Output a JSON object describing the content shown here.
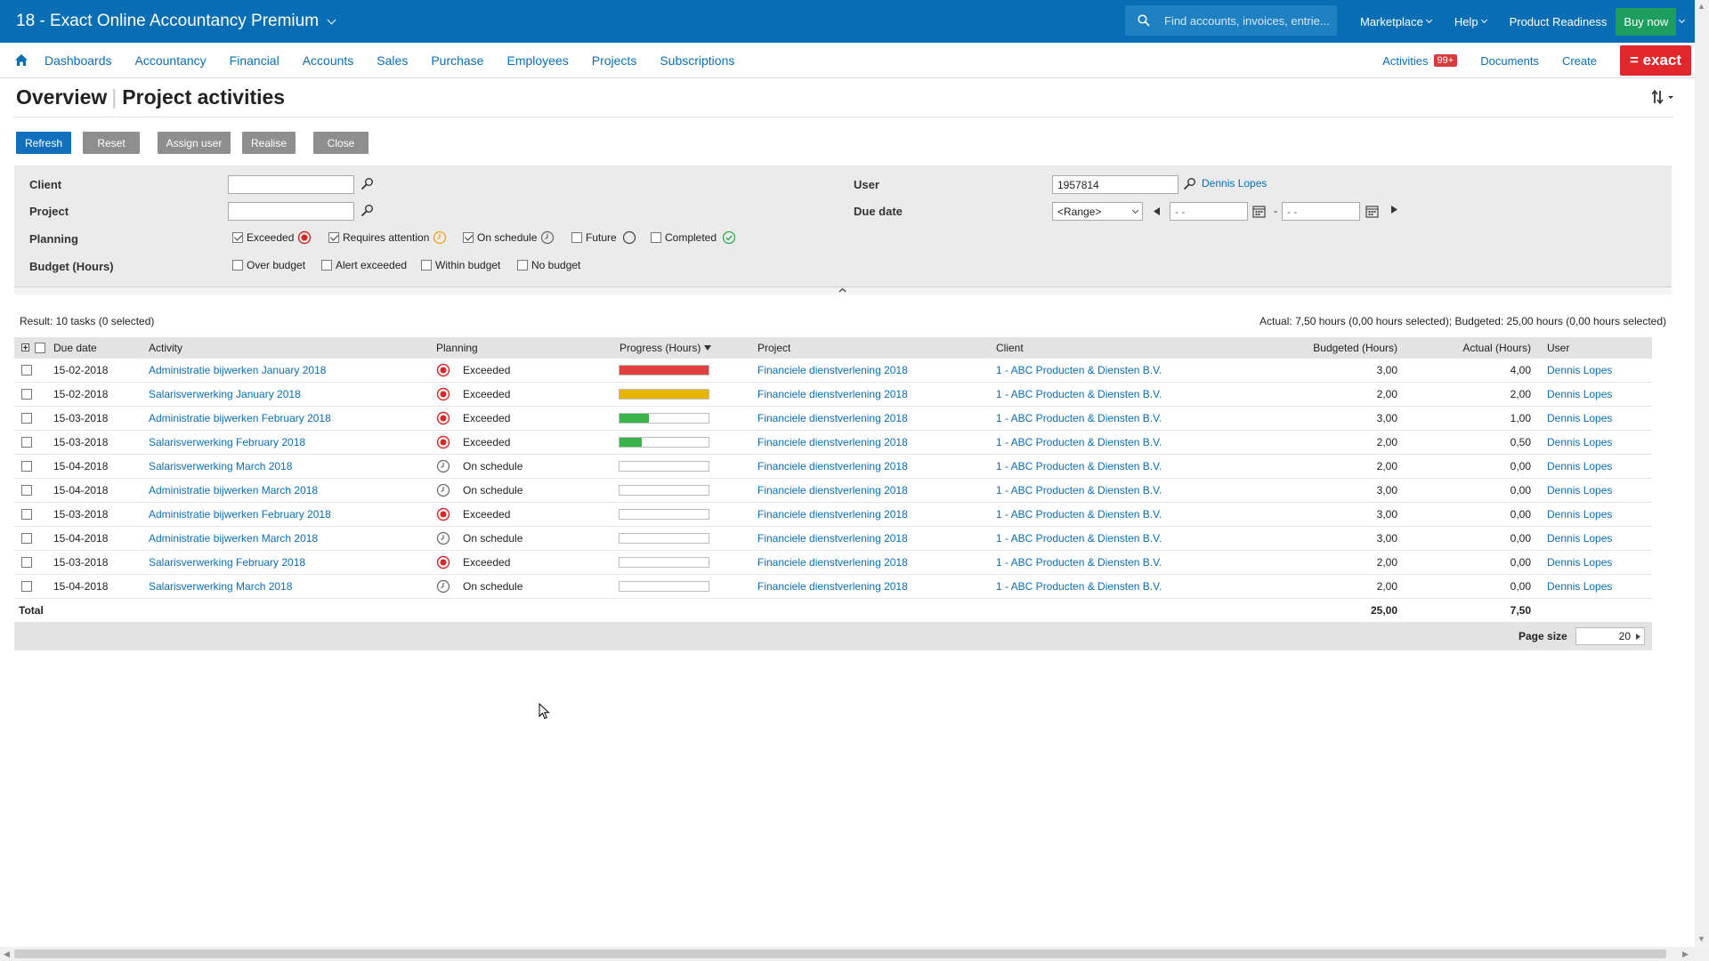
{
  "topbar": {
    "title": "18 - Exact Online Accountancy Premium",
    "search_placeholder": "Find accounts, invoices, entrie...",
    "links": [
      {
        "label": "Marketplace",
        "dropdown": true
      },
      {
        "label": "Help",
        "dropdown": true
      },
      {
        "label": "Product Readiness",
        "dropdown": false
      }
    ],
    "buy_label": "Buy now",
    "bg_color": "#0a6eb4"
  },
  "nav": {
    "items": [
      "Dashboards",
      "Accountancy",
      "Financial",
      "Accounts",
      "Sales",
      "Purchase",
      "Employees",
      "Projects",
      "Subscriptions"
    ],
    "activities_label": "Activities",
    "activities_badge": "99+",
    "documents_label": "Documents",
    "create_label": "Create",
    "logo_text": "= exact"
  },
  "page": {
    "title_left": "Overview",
    "title_right": "Project activities"
  },
  "buttons": {
    "refresh": "Refresh",
    "reset": "Reset",
    "assign_user": "Assign user",
    "realise": "Realise",
    "close": "Close"
  },
  "filters": {
    "client_label": "Client",
    "client_value": "",
    "project_label": "Project",
    "project_value": "",
    "planning_label": "Planning",
    "planning_options": [
      {
        "label": "Exceeded",
        "checked": true
      },
      {
        "label": "Requires attention",
        "checked": true
      },
      {
        "label": "On schedule",
        "checked": true
      },
      {
        "label": "Future",
        "checked": false
      },
      {
        "label": "Completed",
        "checked": false
      }
    ],
    "budget_label": "Budget (Hours)",
    "budget_options": [
      {
        "label": "Over budget",
        "checked": false
      },
      {
        "label": "Alert exceeded",
        "checked": false
      },
      {
        "label": "Within budget",
        "checked": false
      },
      {
        "label": "No budget",
        "checked": false
      }
    ],
    "user_label": "User",
    "user_value": "1957814",
    "user_name": "Dennis Lopes",
    "due_date_label": "Due date",
    "due_date_select": "<Range>",
    "date_from": "- -",
    "date_to": "- -"
  },
  "results": {
    "summary_left": "Result: 10 tasks (0 selected)",
    "summary_right": "Actual: 7,50 hours (0,00 hours selected); Budgeted: 25,00 hours (0,00 hours selected)"
  },
  "table": {
    "headers": {
      "due_date": "Due date",
      "activity": "Activity",
      "planning": "Planning",
      "progress": "Progress (Hours)",
      "project": "Project",
      "client": "Client",
      "budgeted": "Budgeted (Hours)",
      "actual": "Actual (Hours)",
      "user": "User"
    },
    "rows": [
      {
        "due_date": "15-02-2018",
        "activity": "Administratie bijwerken January 2018",
        "planning": "Exceeded",
        "progress": 1.0,
        "progress_color": "#e04040",
        "project": "Financiele dienstverlening 2018",
        "client": "1 - ABC Producten & Diensten B.V.",
        "budgeted": "3,00",
        "actual": "4,00",
        "user": "Dennis Lopes"
      },
      {
        "due_date": "15-02-2018",
        "activity": "Salarisverwerking January 2018",
        "planning": "Exceeded",
        "progress": 1.0,
        "progress_color": "#e8b400",
        "project": "Financiele dienstverlening 2018",
        "client": "1 - ABC Producten & Diensten B.V.",
        "budgeted": "2,00",
        "actual": "2,00",
        "user": "Dennis Lopes"
      },
      {
        "due_date": "15-03-2018",
        "activity": "Administratie bijwerken February 2018",
        "planning": "Exceeded",
        "progress": 0.33,
        "progress_color": "#3cb44b",
        "project": "Financiele dienstverlening 2018",
        "client": "1 - ABC Producten & Diensten B.V.",
        "budgeted": "3,00",
        "actual": "1,00",
        "user": "Dennis Lopes"
      },
      {
        "due_date": "15-03-2018",
        "activity": "Salarisverwerking February 2018",
        "planning": "Exceeded",
        "progress": 0.25,
        "progress_color": "#3cb44b",
        "project": "Financiele dienstverlening 2018",
        "client": "1 - ABC Producten & Diensten B.V.",
        "budgeted": "2,00",
        "actual": "0,50",
        "user": "Dennis Lopes"
      },
      {
        "due_date": "15-04-2018",
        "activity": "Salarisverwerking March 2018",
        "planning": "On schedule",
        "progress": 0,
        "progress_color": "#3cb44b",
        "project": "Financiele dienstverlening 2018",
        "client": "1 - ABC Producten & Diensten B.V.",
        "budgeted": "2,00",
        "actual": "0,00",
        "user": "Dennis Lopes"
      },
      {
        "due_date": "15-04-2018",
        "activity": "Administratie bijwerken March 2018",
        "planning": "On schedule",
        "progress": 0,
        "progress_color": "#3cb44b",
        "project": "Financiele dienstverlening 2018",
        "client": "1 - ABC Producten & Diensten B.V.",
        "budgeted": "3,00",
        "actual": "0,00",
        "user": "Dennis Lopes"
      },
      {
        "due_date": "15-03-2018",
        "activity": "Administratie bijwerken February 2018",
        "planning": "Exceeded",
        "progress": 0,
        "progress_color": "#3cb44b",
        "project": "Financiele dienstverlening 2018",
        "client": "1 - ABC Producten & Diensten B.V.",
        "budgeted": "3,00",
        "actual": "0,00",
        "user": "Dennis Lopes"
      },
      {
        "due_date": "15-04-2018",
        "activity": "Administratie bijwerken March 2018",
        "planning": "On schedule",
        "progress": 0,
        "progress_color": "#3cb44b",
        "project": "Financiele dienstverlening 2018",
        "client": "1 - ABC Producten & Diensten B.V.",
        "budgeted": "3,00",
        "actual": "0,00",
        "user": "Dennis Lopes"
      },
      {
        "due_date": "15-03-2018",
        "activity": "Salarisverwerking February 2018",
        "planning": "Exceeded",
        "progress": 0,
        "progress_color": "#3cb44b",
        "project": "Financiele dienstverlening 2018",
        "client": "1 - ABC Producten & Diensten B.V.",
        "budgeted": "2,00",
        "actual": "0,00",
        "user": "Dennis Lopes"
      },
      {
        "due_date": "15-04-2018",
        "activity": "Salarisverwerking March 2018",
        "planning": "On schedule",
        "progress": 0,
        "progress_color": "#3cb44b",
        "project": "Financiele dienstverlening 2018",
        "client": "1 - ABC Producten & Diensten B.V.",
        "budgeted": "2,00",
        "actual": "0,00",
        "user": "Dennis Lopes"
      }
    ],
    "total_label": "Total",
    "total_budgeted": "25,00",
    "total_actual": "7,50",
    "page_size_label": "Page size",
    "page_size_value": "20"
  },
  "status_colors": {
    "exceeded": "#d62828",
    "requires_attention": "#f0a020",
    "on_schedule": "#666666",
    "completed": "#2eaa4a"
  }
}
